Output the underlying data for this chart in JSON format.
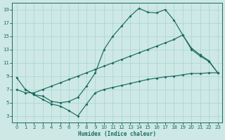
{
  "background_color": "#cde8e5",
  "grid_color": "#a8d5cf",
  "line_color": "#1a6b60",
  "xlabel": "Humidex (Indice chaleur)",
  "xlim": [
    -0.5,
    23.5
  ],
  "ylim": [
    2,
    20
  ],
  "xticks": [
    0,
    1,
    2,
    3,
    4,
    5,
    6,
    7,
    8,
    9,
    10,
    11,
    12,
    13,
    14,
    15,
    16,
    17,
    18,
    19,
    20,
    21,
    22,
    23
  ],
  "yticks": [
    3,
    5,
    7,
    9,
    11,
    13,
    15,
    17,
    19
  ],
  "curve1_x": [
    0,
    1,
    2,
    3,
    4,
    5,
    6,
    7,
    8,
    9,
    10,
    11,
    12,
    13,
    14,
    15,
    16,
    17,
    18,
    19,
    20,
    21,
    22,
    23
  ],
  "curve1_y": [
    8.8,
    7.0,
    6.2,
    6.0,
    5.2,
    5.0,
    5.2,
    5.8,
    7.5,
    9.5,
    13.0,
    15.0,
    16.5,
    18.0,
    19.2,
    18.6,
    18.5,
    19.0,
    17.4,
    15.2,
    13.2,
    12.2,
    11.3,
    9.5
  ],
  "curve2_x": [
    0,
    1,
    2,
    3,
    4,
    5,
    6,
    7,
    8,
    9,
    10,
    11,
    12,
    13,
    14,
    15,
    16,
    17,
    18,
    19,
    20,
    21,
    22,
    23
  ],
  "curve2_y": [
    7.0,
    6.5,
    6.5,
    7.0,
    7.5,
    8.0,
    8.5,
    9.0,
    9.5,
    10.0,
    10.5,
    11.0,
    11.5,
    12.0,
    12.5,
    13.0,
    13.5,
    14.0,
    14.5,
    15.2,
    13.0,
    12.0,
    11.2,
    9.5
  ],
  "curve3_x": [
    1,
    2,
    3,
    4,
    5,
    6,
    7,
    8,
    9,
    10,
    11,
    12,
    13,
    14,
    15,
    16,
    17,
    18,
    19,
    20,
    21,
    22,
    23
  ],
  "curve3_y": [
    7.0,
    6.2,
    5.5,
    4.8,
    4.5,
    3.8,
    3.0,
    4.8,
    6.5,
    7.0,
    7.3,
    7.6,
    7.9,
    8.2,
    8.5,
    8.7,
    8.9,
    9.0,
    9.2,
    9.4,
    9.4,
    9.5,
    9.5
  ]
}
